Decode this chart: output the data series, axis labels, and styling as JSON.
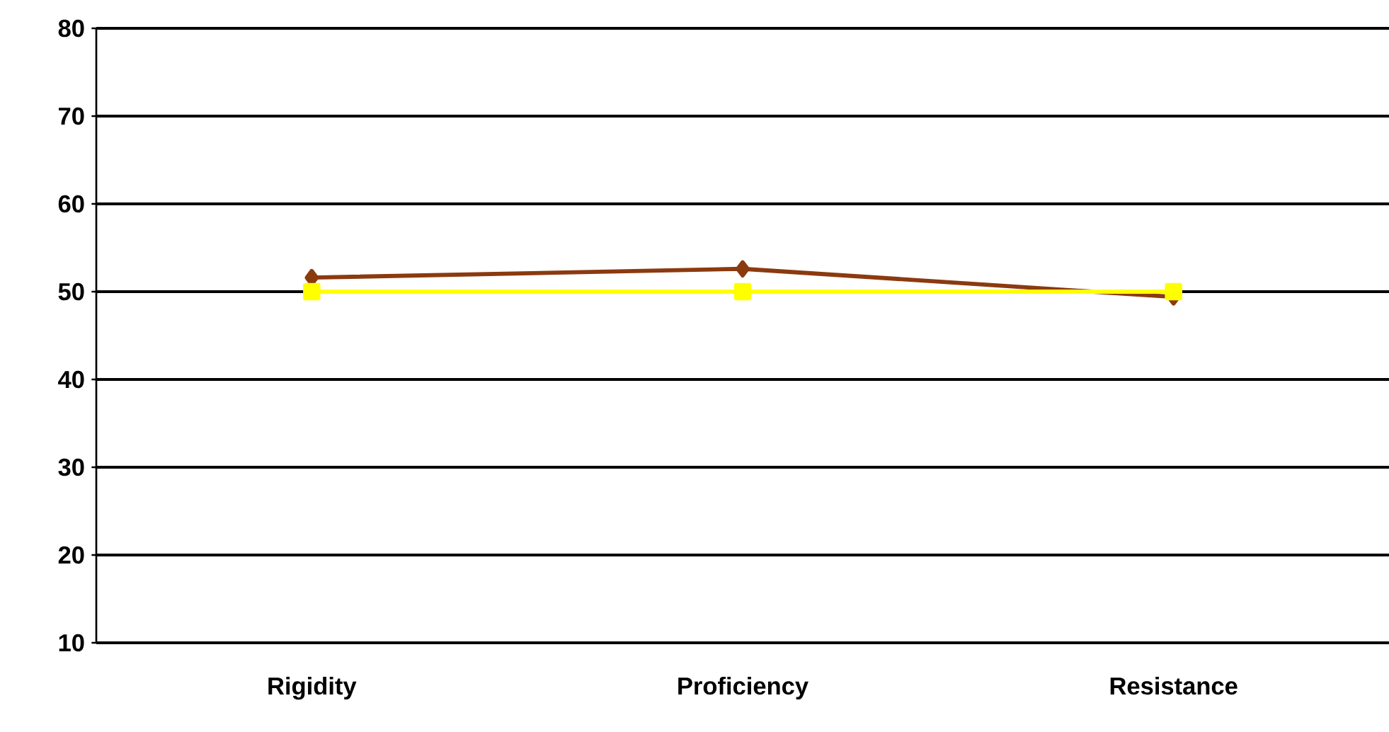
{
  "chart_data": {
    "type": "line",
    "categories": [
      "Rigidity",
      "Proficiency",
      "Resistance"
    ],
    "series": [
      {
        "color": "#8b3a0f",
        "values": [
          51.6,
          52.6,
          49.4
        ],
        "marker": "diamond"
      },
      {
        "color": "#ffff00",
        "values": [
          50,
          50,
          50
        ],
        "marker": "square"
      }
    ],
    "ylim": [
      10,
      80
    ],
    "yticks": [
      10,
      20,
      30,
      40,
      50,
      60,
      70,
      80
    ],
    "grid": "y"
  }
}
